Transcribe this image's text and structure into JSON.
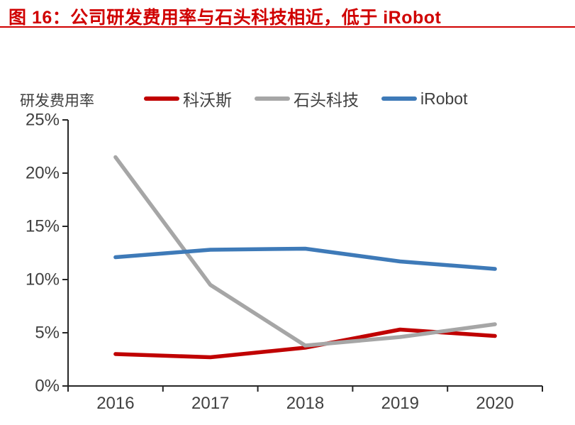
{
  "header": {
    "title": "图 16：公司研发费用率与石头科技相近，低于 iRobot"
  },
  "colors": {
    "title_red": "#d00000",
    "axis_line": "#262626",
    "axis_text": "#404040",
    "series_red": "#c00000",
    "series_gray": "#a6a6a6",
    "series_blue": "#3e7ab8"
  },
  "chart_data": {
    "type": "line",
    "title": "",
    "ylabel": "研发费用率",
    "xlabel": "",
    "categories": [
      "2016",
      "2017",
      "2018",
      "2019",
      "2020"
    ],
    "series": [
      {
        "name": "科沃斯",
        "color": "#c00000",
        "values": [
          3.0,
          2.7,
          3.6,
          5.3,
          4.7
        ]
      },
      {
        "name": "石头科技",
        "color": "#a6a6a6",
        "values": [
          21.5,
          9.5,
          3.8,
          4.6,
          5.8
        ]
      },
      {
        "name": "iRobot",
        "color": "#3e7ab8",
        "values": [
          12.1,
          12.8,
          12.9,
          11.7,
          11.0
        ]
      }
    ],
    "ylim": [
      0,
      25
    ],
    "ytick_step": 5,
    "ytick_suffix": "%",
    "legend_position": "top",
    "grid": false
  }
}
